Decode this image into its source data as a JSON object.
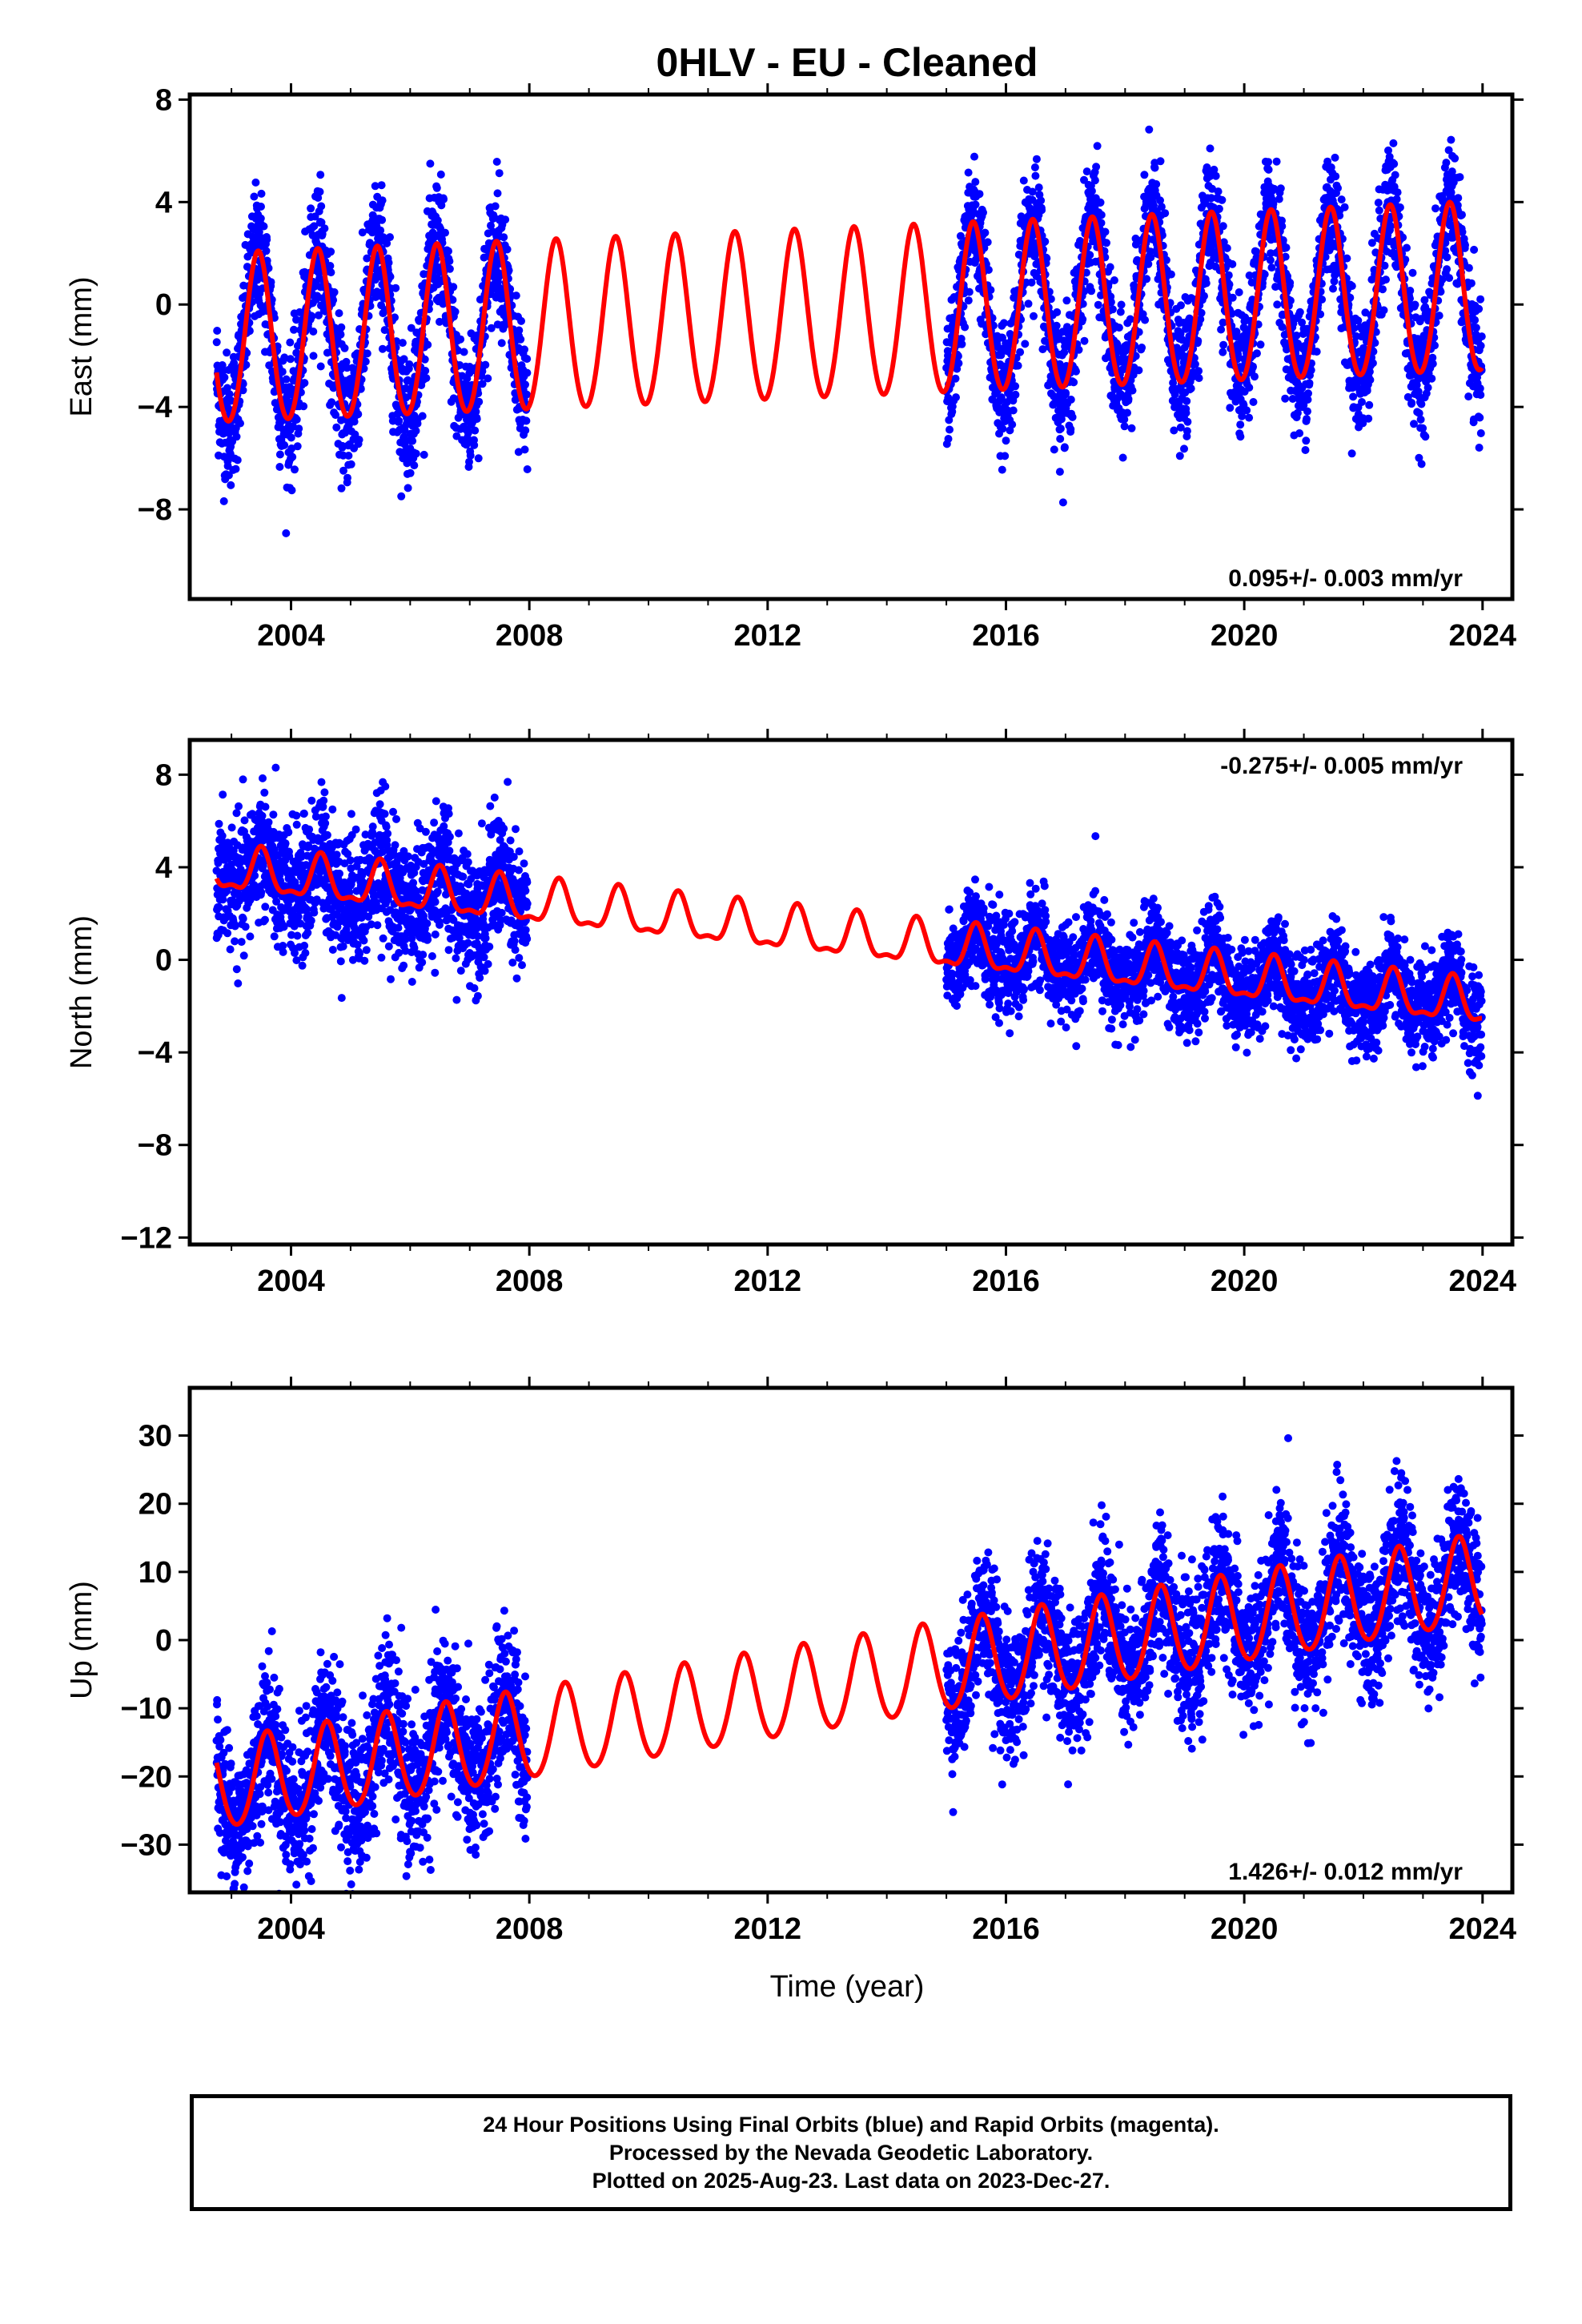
{
  "title": "0HLV  - EU - Cleaned",
  "xlabel": "Time (year)",
  "colors": {
    "data": "#0000ff",
    "model": "#ff0000",
    "axes": "#000000"
  },
  "chart_data": [
    {
      "type": "scatter",
      "component": "East",
      "ylabel": "East (mm)",
      "rate_label": "0.095+/- 0.003 mm/yr",
      "rate_position": "bottom-right",
      "xlim": [
        2002.3,
        2024.5
      ],
      "ylim": [
        -11.5,
        8.2
      ],
      "xticks": [
        2004,
        2008,
        2012,
        2016,
        2020,
        2024
      ],
      "yticks": [
        -8,
        -4,
        0,
        4,
        8
      ],
      "model": {
        "name": "fitted model",
        "rate_mm_per_yr": 0.095,
        "offset_at_2013": -0.5,
        "annual_amplitude": 3.3,
        "semiannual_amplitude": 0.2,
        "annual_peak_year_fraction": 0.45
      },
      "observations": {
        "name": "24 hour positions",
        "segments": [
          {
            "start": 2002.75,
            "end": 2007.97,
            "noise_sd": 1.3
          },
          {
            "start": 2015.0,
            "end": 2023.99,
            "noise_sd": 1.2
          }
        ]
      }
    },
    {
      "type": "scatter",
      "component": "North",
      "ylabel": "North (mm)",
      "rate_label": "-0.275+/- 0.005 mm/yr",
      "rate_position": "top-right",
      "xlim": [
        2002.3,
        2024.5
      ],
      "ylim": [
        -12.3,
        9.5
      ],
      "xticks": [
        2004,
        2008,
        2012,
        2016,
        2020,
        2024
      ],
      "yticks": [
        -12,
        -8,
        -4,
        0,
        4,
        8
      ],
      "model": {
        "name": "fitted model",
        "rate_mm_per_yr": -0.275,
        "offset_at_2013": 1.05,
        "annual_amplitude": 0.9,
        "semiannual_amplitude": 0.35,
        "annual_peak_year_fraction": 0.5
      },
      "observations": {
        "name": "24 hour positions",
        "segments": [
          {
            "start": 2002.75,
            "end": 2007.97,
            "noise_sd": 1.4
          },
          {
            "start": 2015.0,
            "end": 2023.99,
            "noise_sd": 1.0
          }
        ]
      }
    },
    {
      "type": "scatter",
      "component": "Up",
      "ylabel": "Up (mm)",
      "rate_label": "1.426+/- 0.012 mm/yr",
      "rate_position": "bottom-right",
      "xlim": [
        2002.3,
        2024.5
      ],
      "ylim": [
        -37,
        37
      ],
      "xticks": [
        2004,
        2008,
        2012,
        2016,
        2020,
        2024
      ],
      "yticks": [
        -30,
        -20,
        -10,
        0,
        10,
        20,
        30
      ],
      "model": {
        "name": "fitted model",
        "rate_mm_per_yr": 1.426,
        "offset_at_2013": -7,
        "annual_amplitude": 6.5,
        "semiannual_amplitude": 0.6,
        "annual_peak_year_fraction": 0.6
      },
      "observations": {
        "name": "24 hour positions",
        "segments": [
          {
            "start": 2002.75,
            "end": 2007.97,
            "noise_sd": 5.5
          },
          {
            "start": 2015.0,
            "end": 2023.99,
            "noise_sd": 5.0
          }
        ]
      }
    }
  ],
  "footer": {
    "line1": "24 Hour Positions Using Final Orbits (blue) and Rapid Orbits (magenta).",
    "line2": "Processed by the Nevada Geodetic Laboratory.",
    "line3": "Plotted on 2025-Aug-23. Last data on 2023-Dec-27."
  }
}
